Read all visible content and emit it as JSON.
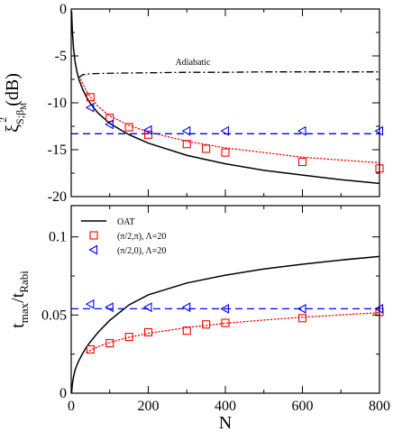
{
  "chart_data": [
    {
      "type": "line",
      "ylabel": "ξ_{S;β_M}^2 (dB)",
      "xlim": [
        0,
        800
      ],
      "ylim": [
        -20,
        0
      ],
      "y_ticks": [
        0,
        -5,
        -10,
        -15,
        -20
      ],
      "x_ticks": [
        0,
        200,
        400,
        600,
        800
      ],
      "annotations": [
        "Adiabatic"
      ],
      "series": [
        {
          "style": "solid",
          "color": "#000000",
          "x": [
            1,
            3,
            6,
            10,
            15,
            20,
            30,
            40,
            50,
            70,
            100,
            150,
            200,
            300,
            400,
            500,
            600,
            700,
            800
          ],
          "y": [
            -0.2,
            -2.4,
            -4.2,
            -5.6,
            -6.7,
            -7.5,
            -8.6,
            -9.4,
            -10.1,
            -11.1,
            -12.2,
            -13.4,
            -14.3,
            -15.6,
            -16.5,
            -17.2,
            -17.7,
            -18.2,
            -18.6
          ]
        },
        {
          "style": "dotted",
          "color": "#ff0000",
          "x": [
            25,
            40,
            50,
            70,
            100,
            150,
            200,
            300,
            400,
            500,
            600,
            700,
            800
          ],
          "y": [
            -7.5,
            -8.8,
            -9.4,
            -10.4,
            -11.4,
            -12.4,
            -13.1,
            -14.1,
            -14.8,
            -15.3,
            -15.8,
            -16.1,
            -16.4
          ]
        },
        {
          "style": "dashed",
          "color": "#0000ff",
          "x": [
            0,
            800
          ],
          "y": [
            -13.3,
            -13.3
          ]
        },
        {
          "style": "dash-dot",
          "color": "#000000",
          "x": [
            20,
            30,
            50,
            100,
            200,
            300,
            400,
            500,
            600,
            700,
            800
          ],
          "y": [
            -7.3,
            -7.0,
            -6.9,
            -6.85,
            -6.8,
            -6.75,
            -6.75,
            -6.7,
            -6.7,
            -6.7,
            -6.7
          ]
        },
        {
          "marker": "square",
          "color": "#ff0000",
          "x": [
            50,
            100,
            150,
            200,
            300,
            350,
            400,
            600,
            800
          ],
          "y": [
            -9.4,
            -11.6,
            -12.6,
            -13.4,
            -14.4,
            -14.9,
            -15.3,
            -16.3,
            -17.0
          ]
        },
        {
          "marker": "triangle-left",
          "color": "#0000ff",
          "x": [
            50,
            100,
            200,
            300,
            400,
            600,
            800
          ],
          "y": [
            -10.5,
            -12.3,
            -12.9,
            -13.0,
            -13.0,
            -13.0,
            -13.0
          ]
        }
      ]
    },
    {
      "type": "line",
      "xlabel": "N",
      "ylabel": "t_max/t_Rabi",
      "xlim": [
        0,
        800
      ],
      "ylim": [
        0,
        0.12
      ],
      "y_ticks": [
        0,
        0.05,
        0.1
      ],
      "x_ticks": [
        0,
        200,
        400,
        600,
        800
      ],
      "legend_position": "top-left",
      "series": [
        {
          "name": "OAT",
          "style": "solid",
          "color": "#000000",
          "x": [
            1,
            3,
            6,
            10,
            15,
            20,
            30,
            40,
            50,
            70,
            100,
            150,
            200,
            300,
            400,
            500,
            600,
            700,
            800
          ],
          "y": [
            0,
            0.006,
            0.0105,
            0.0148,
            0.0181,
            0.0209,
            0.0256,
            0.0296,
            0.033,
            0.039,
            0.0466,
            0.0565,
            0.0629,
            0.0705,
            0.0755,
            0.0795,
            0.0825,
            0.0852,
            0.0875
          ]
        },
        {
          "style": "dotted",
          "color": "#ff0000",
          "x": [
            40,
            50,
            70,
            100,
            150,
            200,
            300,
            400,
            500,
            600,
            700,
            800
          ],
          "y": [
            0.026,
            0.0275,
            0.0298,
            0.0325,
            0.0358,
            0.0383,
            0.042,
            0.0447,
            0.0468,
            0.0486,
            0.0501,
            0.0515
          ]
        },
        {
          "style": "dashed",
          "color": "#0000ff",
          "x": [
            0,
            800
          ],
          "y": [
            0.054,
            0.054
          ]
        },
        {
          "name": "(π/2,π), Λ=20",
          "marker": "square",
          "color": "#ff0000",
          "x": [
            50,
            100,
            150,
            200,
            300,
            350,
            400,
            600,
            800
          ],
          "y": [
            0.028,
            0.032,
            0.036,
            0.039,
            0.04,
            0.044,
            0.045,
            0.048,
            0.052
          ]
        },
        {
          "name": "(π/2,0), Λ=20",
          "marker": "triangle-left",
          "color": "#0000ff",
          "x": [
            50,
            100,
            200,
            300,
            400,
            600,
            800
          ],
          "y": [
            0.057,
            0.055,
            0.055,
            0.055,
            0.054,
            0.054,
            0.054
          ]
        }
      ]
    }
  ]
}
